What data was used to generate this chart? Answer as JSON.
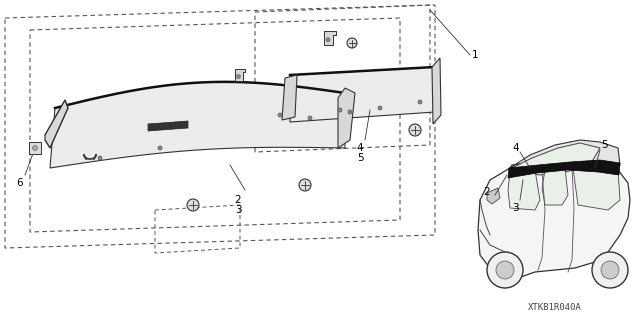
{
  "bg_color": "#ffffff",
  "fig_width": 6.4,
  "fig_height": 3.19,
  "watermark": "XTKB1R040A",
  "line_color": "#333333",
  "text_color": "#000000",
  "font_size": 7.5,
  "dpi": 100
}
